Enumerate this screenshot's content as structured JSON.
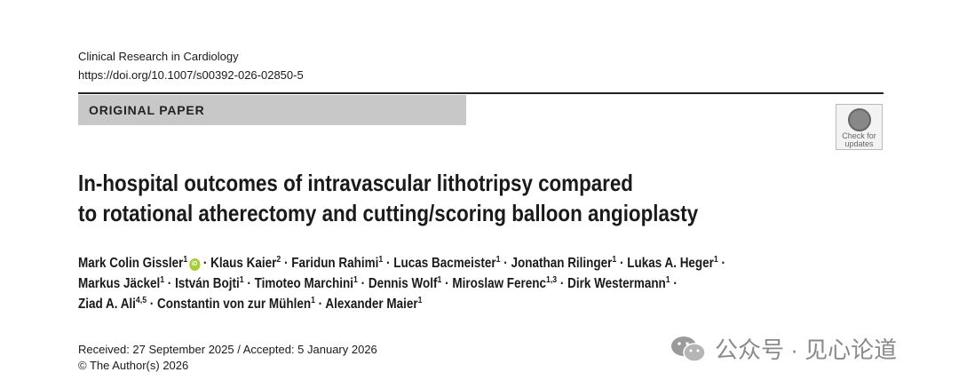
{
  "header": {
    "journal": "Clinical Research in Cardiology",
    "doi": "https://doi.org/10.1007/s00392-026-02850-5",
    "article_type": "ORIGINAL PAPER",
    "check_badge": "Check for updates"
  },
  "title": [
    "In-hospital outcomes of intravascular lithotripsy compared",
    "to rotational atherectomy and cutting/scoring balloon angioplasty"
  ],
  "separator": "·",
  "orcid_icon": "iD",
  "authors": [
    [
      {
        "name": "Mark Colin Gissler",
        "sup": "1"
      },
      {
        "name": "Klaus Kaier",
        "sup": "2"
      },
      {
        "name": "Faridun Rahimi",
        "sup": "1"
      },
      {
        "name": "Lucas Bacmeister",
        "sup": "1"
      },
      {
        "name": "Jonathan Rilinger",
        "sup": "1"
      },
      {
        "name": "Lukas A. Heger",
        "sup": "1"
      }
    ],
    [
      {
        "name": "Markus Jäckel",
        "sup": "1"
      },
      {
        "name": "István Bojti",
        "sup": "1"
      },
      {
        "name": "Timoteo Marchini",
        "sup": "1"
      },
      {
        "name": "Dennis Wolf",
        "sup": "1"
      },
      {
        "name": "Miroslaw Ferenc",
        "sup": "1,3"
      },
      {
        "name": "Dirk Westermann",
        "sup": "1"
      }
    ],
    [
      {
        "name": "Ziad A. Ali",
        "sup": "4,5"
      },
      {
        "name": "Constantin von zur Mühlen",
        "sup": "1"
      },
      {
        "name": "Alexander Maier",
        "sup": "1"
      }
    ]
  ],
  "footer": {
    "dates": "Received: 27 September 2025 / Accepted: 5 January 2026",
    "copyright": "© The Author(s) 2026"
  },
  "watermark": "公众号 · 见心论道"
}
